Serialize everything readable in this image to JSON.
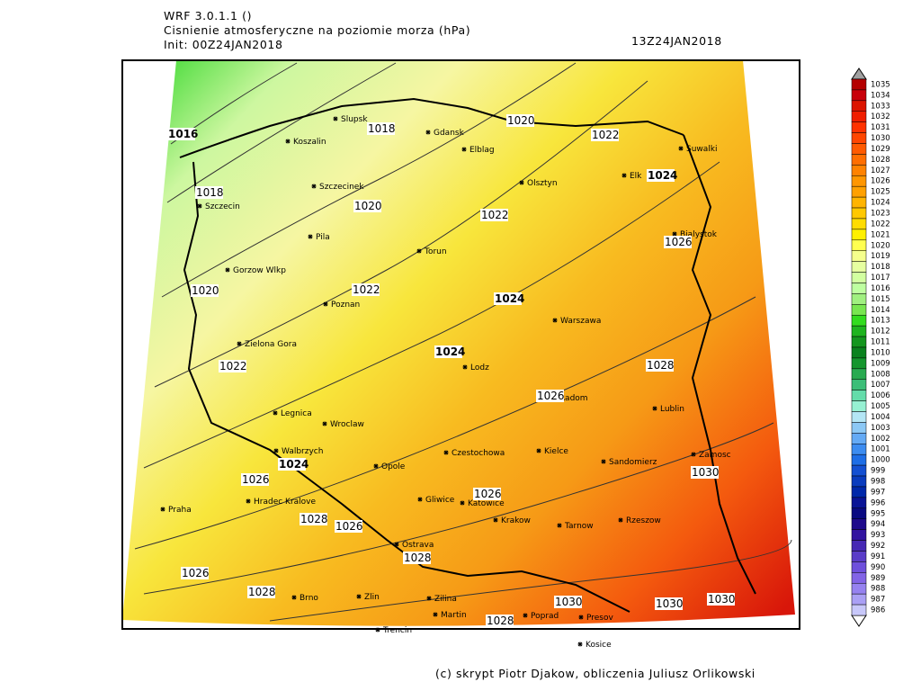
{
  "header": {
    "model": "WRF 3.0.1.1 ()",
    "title": "Cisnienie atmosferyczne na poziomie morza (hPa)",
    "init": "Init: 00Z24JAN2018",
    "valid": "13Z24JAN2018"
  },
  "cities": [
    "Slupsk",
    "Koszalin",
    "Gdansk",
    "Elblag",
    "Olsztyn",
    "Elk",
    "Suwalki",
    "Szczecinek",
    "Szczecin",
    "Pila",
    "Torun",
    "Bialystok",
    "Gorzow Wlkp",
    "Poznan",
    "Warszawa",
    "Zielona Gora",
    "Lodz",
    "Radom",
    "Lublin",
    "Legnica",
    "Wroclaw",
    "Walbrzych",
    "Kielce",
    "Czestochowa",
    "Opole",
    "Sandomierz",
    "Zamosc",
    "Praha",
    "Hradec Kralove",
    "Gliwice",
    "Katowice",
    "Krakow",
    "Tarnow",
    "Rzeszow",
    "Ostrava",
    "Brno",
    "Zlin",
    "Zilina",
    "Martin",
    "Poprad",
    "Presov",
    "Trencin",
    "Kosice"
  ],
  "contour_labels": [
    1016,
    1018,
    1018,
    1020,
    1020,
    1020,
    1022,
    1022,
    1022,
    1022,
    1024,
    1024,
    1024,
    1024,
    1026,
    1026,
    1026,
    1026,
    1026,
    1026,
    1028,
    1028,
    1028,
    1028,
    1028,
    1030,
    1030,
    1030,
    1030
  ],
  "colorbar": {
    "levels": [
      1035,
      1034,
      1033,
      1032,
      1031,
      1030,
      1029,
      1028,
      1027,
      1026,
      1025,
      1024,
      1023,
      1022,
      1021,
      1020,
      1019,
      1018,
      1017,
      1016,
      1015,
      1014,
      1013,
      1012,
      1011,
      1010,
      1009,
      1008,
      1007,
      1006,
      1005,
      1004,
      1003,
      1002,
      1001,
      1000,
      999,
      998,
      997,
      996,
      995,
      994,
      993,
      992,
      991,
      990,
      989,
      988,
      987,
      986
    ],
    "colors": [
      "#b40000",
      "#c8000a",
      "#dc1400",
      "#f01e00",
      "#ff3200",
      "#ff4600",
      "#ff5a00",
      "#ff6e00",
      "#ff8200",
      "#ff9600",
      "#ffa000",
      "#ffb400",
      "#ffc800",
      "#ffdc00",
      "#fff000",
      "#ffff50",
      "#f5ff8c",
      "#e6ffa0",
      "#d2ffa0",
      "#beffa0",
      "#a0f080",
      "#78e650",
      "#32dc1e",
      "#1eb41e",
      "#14961e",
      "#0a821e",
      "#14962d",
      "#28aa50",
      "#3cbe78",
      "#64dcaa",
      "#96f0d2",
      "#b4e6f5",
      "#8cc8f5",
      "#64aaf5",
      "#3c8cf0",
      "#1e6ee6",
      "#1450d2",
      "#0a3cbe",
      "#0028aa",
      "#0a1496",
      "#0a0a82",
      "#1e0a8c",
      "#3214a0",
      "#4628b4",
      "#5a3cc8",
      "#6e50dc",
      "#8264e6",
      "#9682f0",
      "#aaa0f5",
      "#c8c8fa"
    ]
  },
  "footer": "(c) skrypt Piotr Djakow, obliczenia Juliusz Orlikowski"
}
